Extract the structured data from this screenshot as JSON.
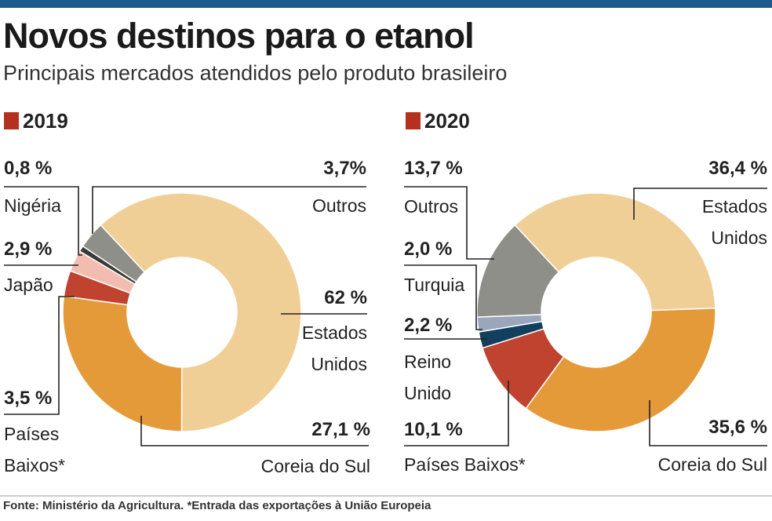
{
  "title": "Novos destinos para o etanol",
  "subtitle": "Principais mercados atendidos pelo produto brasileiro",
  "chart_data": [
    {
      "type": "pie",
      "title": "2019",
      "title_color": "#b5311f",
      "categories": [
        "Estados Unidos",
        "Coreia do Sul",
        "Países Baixos*",
        "Japão",
        "Nigéria",
        "Outros"
      ],
      "values": [
        62,
        27.1,
        3.5,
        2.9,
        0.8,
        3.7
      ],
      "value_labels": [
        "62 %",
        "27,1 %",
        "3,5 %",
        "2,9 %",
        "0,8 %",
        "3,7%"
      ],
      "colors": [
        "#f0cf97",
        "#e59a3a",
        "#c0432f",
        "#f2bdb0",
        "#3a3a3a",
        "#8e8f88"
      ]
    },
    {
      "type": "pie",
      "title": "2020",
      "title_color": "#b5311f",
      "categories": [
        "Estados Unidos",
        "Coreia do Sul",
        "Países Baixos*",
        "Reino Unido",
        "Turquia",
        "Outros"
      ],
      "values": [
        36.4,
        35.6,
        10.1,
        2.2,
        2.0,
        13.7
      ],
      "value_labels": [
        "36,4 %",
        "35,6 %",
        "10,1 %",
        "2,2 %",
        "2,0 %",
        "13,7 %"
      ],
      "colors": [
        "#f0cf97",
        "#e59a3a",
        "#c0432f",
        "#123f5c",
        "#9aa6bb",
        "#8e8f88"
      ]
    }
  ],
  "source": "Fonte: Ministério da Agricultura. *Entrada das exportações à União Europeia"
}
